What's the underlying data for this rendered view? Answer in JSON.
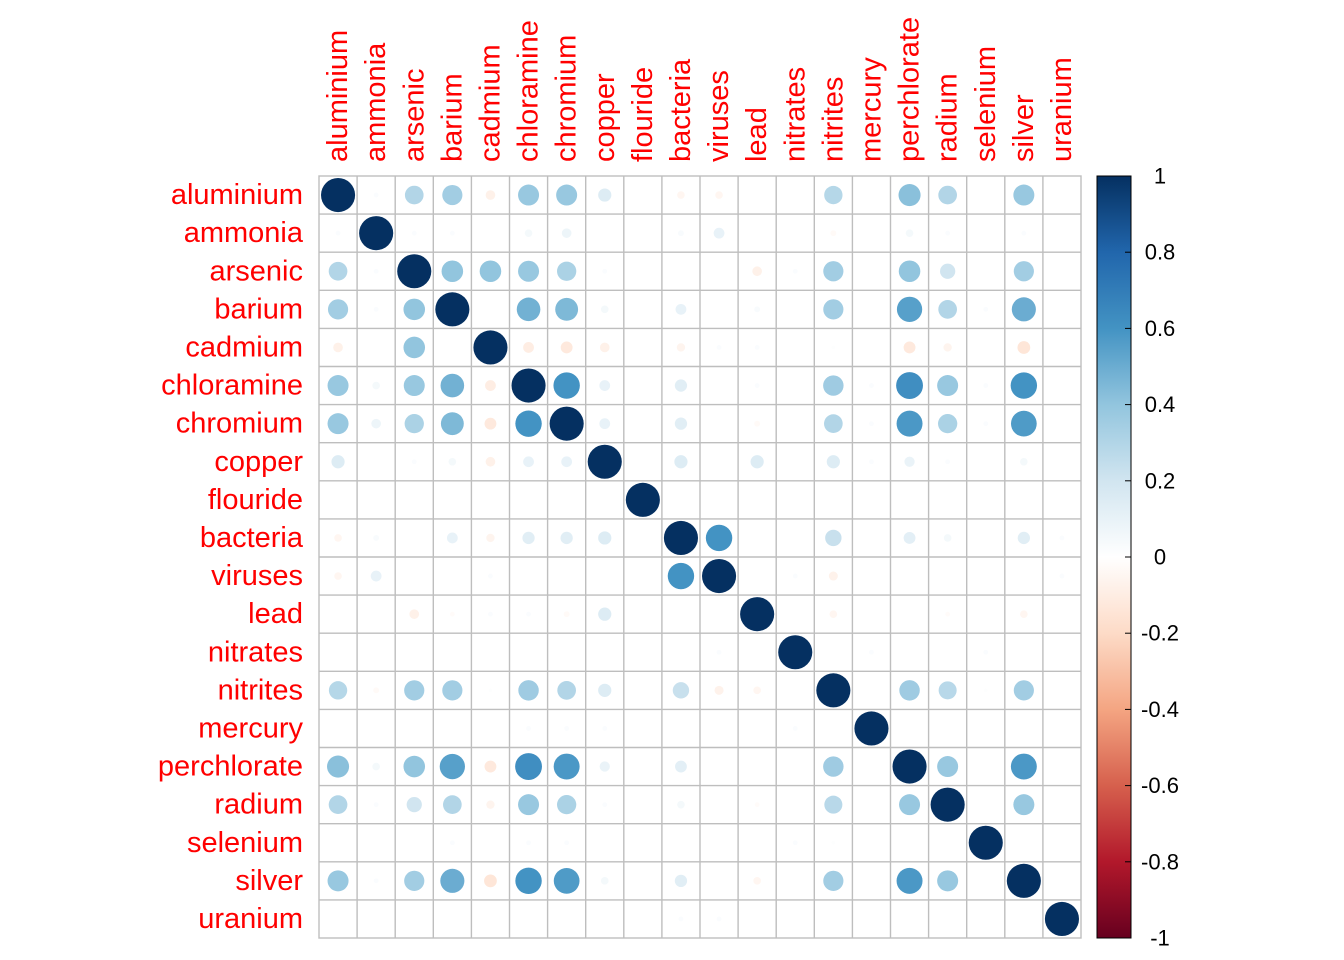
{
  "chart_data": {
    "type": "heatmap",
    "style": "correlation-circles",
    "title": "",
    "variables": [
      "aluminium",
      "ammonia",
      "arsenic",
      "barium",
      "cadmium",
      "chloramine",
      "chromium",
      "copper",
      "flouride",
      "bacteria",
      "viruses",
      "lead",
      "nitrates",
      "nitrites",
      "mercury",
      "perchlorate",
      "radium",
      "selenium",
      "silver",
      "uranium"
    ],
    "matrix": [
      [
        1,
        0.02,
        0.3,
        0.35,
        -0.08,
        0.38,
        0.38,
        0.15,
        0,
        -0.05,
        -0.05,
        0,
        0,
        0.29,
        0,
        0.42,
        0.3,
        0,
        0.38,
        0
      ],
      [
        0.02,
        1,
        0.02,
        0.02,
        0,
        0.05,
        0.08,
        0,
        0,
        0.03,
        0.1,
        0,
        0,
        -0.03,
        0,
        0.05,
        0.02,
        0,
        0.02,
        0
      ],
      [
        0.3,
        0.02,
        1,
        0.4,
        0.4,
        0.38,
        0.32,
        0.02,
        0,
        0,
        0,
        -0.08,
        0.02,
        0.35,
        0,
        0.4,
        0.2,
        0,
        0.35,
        0
      ],
      [
        0.35,
        0.02,
        0.4,
        1,
        0,
        0.48,
        0.45,
        0.05,
        0,
        0.1,
        0,
        0.03,
        0,
        0.35,
        0,
        0.55,
        0.3,
        0.02,
        0.5,
        0
      ],
      [
        -0.08,
        0,
        0.4,
        0,
        1,
        -0.1,
        -0.12,
        -0.08,
        0,
        -0.06,
        0.02,
        0.02,
        0,
        0.01,
        0,
        -0.12,
        -0.06,
        0,
        -0.14,
        0
      ],
      [
        0.38,
        0.05,
        0.38,
        0.48,
        -0.1,
        1,
        0.6,
        0.1,
        0,
        0.13,
        0,
        0.02,
        0,
        0.36,
        0.02,
        0.62,
        0.38,
        0.02,
        0.6,
        0
      ],
      [
        0.38,
        0.08,
        0.32,
        0.45,
        -0.12,
        0.6,
        1,
        0.1,
        0,
        0.13,
        0,
        -0.03,
        0,
        0.3,
        0.02,
        0.58,
        0.32,
        0.02,
        0.57,
        0
      ],
      [
        0.15,
        0,
        0.02,
        0.05,
        -0.08,
        0.1,
        0.1,
        1,
        0,
        0.15,
        0,
        0.15,
        0,
        0.15,
        0.02,
        0.09,
        0.02,
        0,
        0.05,
        0
      ],
      [
        0,
        0,
        0,
        0,
        0,
        0,
        0,
        0,
        1,
        0,
        0,
        0,
        0,
        0,
        0,
        0,
        0,
        0,
        0,
        0
      ],
      [
        -0.05,
        0.03,
        0,
        0.1,
        -0.06,
        0.13,
        0.13,
        0.15,
        0,
        1,
        0.6,
        0,
        0,
        0.23,
        0,
        0.12,
        0.05,
        0,
        0.13,
        0.02
      ],
      [
        -0.05,
        0.1,
        0,
        0,
        0.02,
        0,
        0,
        0,
        0,
        0.6,
        1,
        0,
        0.02,
        -0.07,
        0,
        0,
        0,
        0,
        0,
        0.02
      ],
      [
        0,
        0,
        -0.08,
        -0.02,
        0.02,
        0.02,
        -0.03,
        0.15,
        0,
        0,
        0,
        1,
        0,
        -0.05,
        0,
        0,
        -0.02,
        0,
        -0.05,
        0
      ],
      [
        0,
        0,
        0,
        0,
        0,
        0,
        0,
        0,
        0,
        0,
        0.02,
        0,
        1,
        0,
        0.02,
        0,
        0,
        0.02,
        0,
        0
      ],
      [
        0.29,
        -0.03,
        0.35,
        0.35,
        0.01,
        0.36,
        0.3,
        0.15,
        0,
        0.23,
        -0.07,
        -0.05,
        0,
        1,
        0,
        0.36,
        0.28,
        0.01,
        0.35,
        0
      ],
      [
        0,
        0,
        0,
        0,
        0,
        0.02,
        0.02,
        0.02,
        0,
        0,
        0,
        0,
        0.02,
        0,
        1,
        0,
        0,
        0,
        0,
        0
      ],
      [
        0.42,
        0.05,
        0.4,
        0.55,
        -0.12,
        0.62,
        0.58,
        0.09,
        0,
        0.12,
        0,
        0,
        0,
        0.36,
        0,
        1,
        0.38,
        0,
        0.58,
        0
      ],
      [
        0.3,
        0.02,
        0.2,
        0.3,
        -0.06,
        0.38,
        0.32,
        0.02,
        0,
        0.05,
        0,
        -0.02,
        0,
        0.28,
        0,
        0.38,
        1,
        0,
        0.38,
        0
      ],
      [
        0,
        0,
        0,
        0.02,
        0,
        0.02,
        0.02,
        0,
        0,
        0,
        0,
        0,
        0.02,
        0.01,
        0,
        0,
        0,
        1,
        0,
        0
      ],
      [
        0.38,
        0.02,
        0.35,
        0.5,
        -0.14,
        0.6,
        0.57,
        0.05,
        0,
        0.13,
        0,
        -0.05,
        0,
        0.35,
        0,
        0.58,
        0.38,
        0,
        1,
        0
      ],
      [
        0,
        0,
        0,
        0,
        0,
        0,
        0,
        0,
        0,
        0.02,
        0.02,
        0,
        0,
        0,
        0,
        0,
        0,
        0,
        0,
        1
      ]
    ],
    "colorbar": {
      "range": [
        -1,
        1
      ],
      "ticks": [
        1,
        0.8,
        0.6,
        0.4,
        0.2,
        0,
        -0.2,
        -0.4,
        -0.6,
        -0.8,
        -1
      ],
      "tick_labels": [
        "1",
        "0.8",
        "0.6",
        "0.4",
        "0.2",
        "0",
        "-0.2",
        "-0.4",
        "-0.6",
        "-0.8",
        "-1"
      ]
    },
    "colors": {
      "label": "#ff0000",
      "grid": "#bebebe",
      "scale": [
        "#67001f",
        "#b2182b",
        "#d6604d",
        "#f4a582",
        "#fddbc7",
        "#ffffff",
        "#d1e5f0",
        "#92c5de",
        "#4393c3",
        "#2166ac",
        "#053061"
      ]
    }
  }
}
